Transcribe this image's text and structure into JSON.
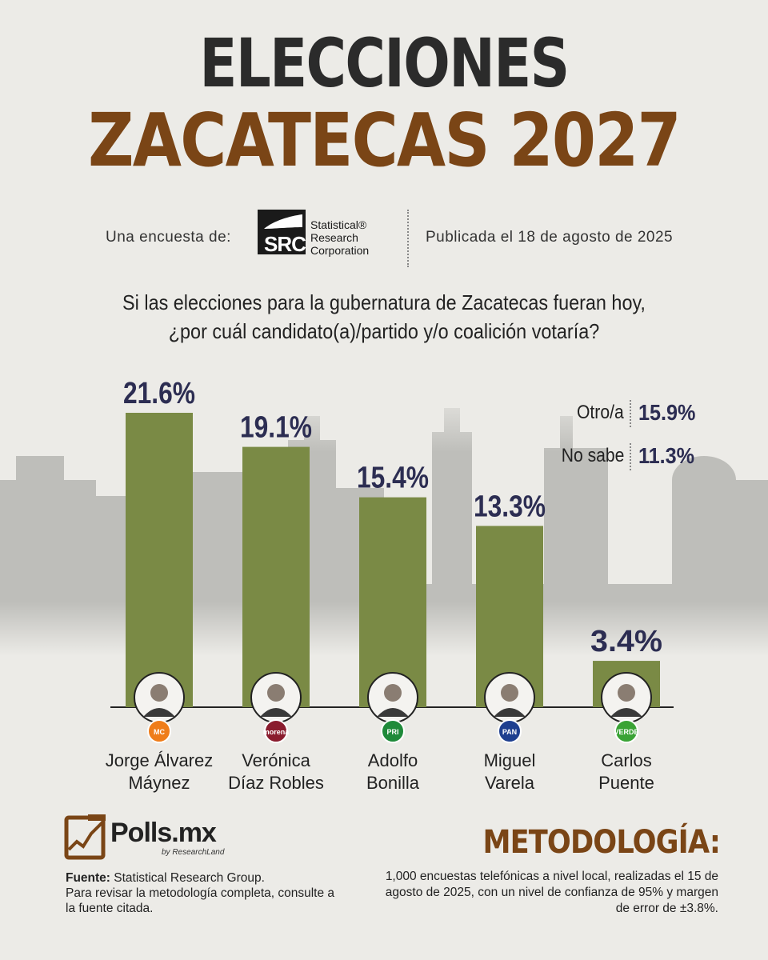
{
  "header": {
    "title_line1": "ELECCIONES",
    "title_line2": "ZACATECAS 2027",
    "survey_by_label": "Una encuesta de:",
    "pollster_logo_mark": "SRC",
    "pollster_logo_name": [
      "Statistical®",
      "Research",
      "Corporation"
    ],
    "published": "Publicada el 18 de agosto de 2025"
  },
  "question": [
    "Si las elecciones para la gubernatura de Zacatecas fueran hoy,",
    "¿por cuál candidato(a)/partido y/o coalición votaría?"
  ],
  "chart_data": {
    "type": "bar",
    "categories": [
      "Jorge Álvarez Máynez",
      "Verónica Díaz Robles",
      "Adolfo Bonilla",
      "Miguel Varela",
      "Carlos Puente"
    ],
    "category_lines": [
      [
        "Jorge Álvarez",
        "Máynez"
      ],
      [
        "Verónica",
        "Díaz Robles"
      ],
      [
        "Adolfo",
        "Bonilla"
      ],
      [
        "Miguel",
        "Varela"
      ],
      [
        "Carlos",
        "Puente"
      ]
    ],
    "values": [
      21.6,
      19.1,
      15.4,
      13.3,
      3.4
    ],
    "value_labels": [
      "21.6%",
      "19.1%",
      "15.4%",
      "13.3%",
      "3.4%"
    ],
    "parties": [
      "MC",
      "morena",
      "PRI",
      "PAN",
      "VERDE"
    ],
    "party_colors": [
      "#ef7d1a",
      "#8a1c2e",
      "#1f8a3a",
      "#1e3f8f",
      "#3aa335"
    ],
    "bar_color": "#7a8a45",
    "value_color": "#2c2d52",
    "title": "",
    "xlabel": "",
    "ylabel": "",
    "ylim": [
      0,
      21.6
    ],
    "grid": false,
    "legend": "none",
    "other_responses": [
      {
        "label": "Otro/a",
        "value": "15.9%"
      },
      {
        "label": "No sabe",
        "value": "11.3%"
      }
    ]
  },
  "footer": {
    "brand_name": "Polls.mx",
    "brand_sub": "by ResearchLand",
    "source_label": "Fuente:",
    "source_text": "Statistical Research Group.",
    "source_note": "Para revisar la metodología completa, consulte a la fuente citada.",
    "methodology_title": "METODOLOGÍA:",
    "methodology_text": "1,000 encuestas telefónicas a nivel local, realizadas el 15 de agosto de 2025, con un nivel de confianza de 95% y margen de error de ±3.8%."
  }
}
